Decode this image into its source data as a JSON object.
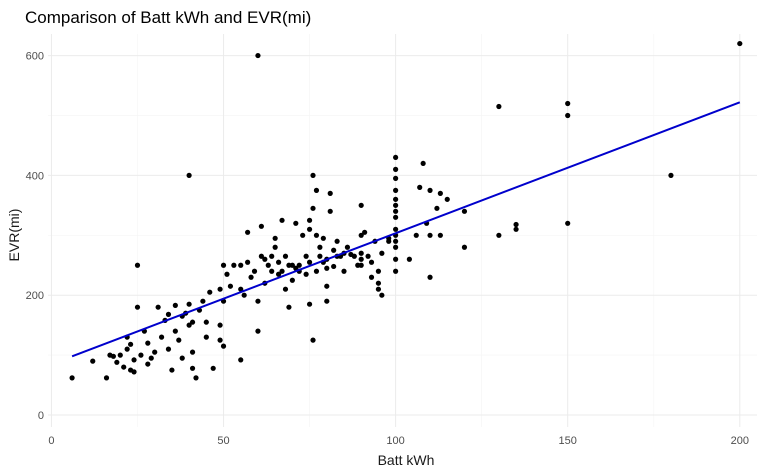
{
  "chart_data": {
    "type": "scatter",
    "title": "Comparison of Batt kWh and EVR(mi)",
    "xlabel": "Batt kWh",
    "ylabel": "EVR(mi)",
    "xlim": [
      -1,
      205
    ],
    "ylim": [
      -20,
      636
    ],
    "x_ticks": [
      0,
      50,
      100,
      150,
      200
    ],
    "y_ticks": [
      0,
      200,
      400,
      600
    ],
    "x_tick_labels": [
      "0",
      "50",
      "100",
      "150",
      "200"
    ],
    "y_tick_labels": [
      "0",
      "200",
      "400",
      "600"
    ],
    "grid": true,
    "colors": {
      "points": "#000000",
      "trend": "#0000CC",
      "grid": "#ebebeb"
    },
    "trend_line": {
      "x": [
        6,
        200
      ],
      "y": [
        98,
        522
      ]
    },
    "points": [
      [
        6,
        62
      ],
      [
        12,
        90
      ],
      [
        16,
        62
      ],
      [
        17,
        100
      ],
      [
        18,
        98
      ],
      [
        19,
        88
      ],
      [
        20,
        100
      ],
      [
        21,
        80
      ],
      [
        22,
        130
      ],
      [
        22,
        110
      ],
      [
        23,
        75
      ],
      [
        23,
        118
      ],
      [
        24,
        92
      ],
      [
        24,
        72
      ],
      [
        25,
        180
      ],
      [
        25,
        250
      ],
      [
        26,
        100
      ],
      [
        27,
        140
      ],
      [
        28,
        85
      ],
      [
        28,
        120
      ],
      [
        29,
        95
      ],
      [
        30,
        105
      ],
      [
        31,
        180
      ],
      [
        32,
        130
      ],
      [
        33,
        158
      ],
      [
        34,
        168
      ],
      [
        34,
        110
      ],
      [
        35,
        75
      ],
      [
        36,
        140
      ],
      [
        36,
        183
      ],
      [
        37,
        125
      ],
      [
        38,
        165
      ],
      [
        38,
        95
      ],
      [
        39,
        170
      ],
      [
        40,
        400
      ],
      [
        40,
        150
      ],
      [
        40,
        185
      ],
      [
        41,
        78
      ],
      [
        41,
        155
      ],
      [
        41,
        105
      ],
      [
        42,
        62
      ],
      [
        43,
        175
      ],
      [
        44,
        190
      ],
      [
        45,
        130
      ],
      [
        45,
        155
      ],
      [
        46,
        205
      ],
      [
        47,
        78
      ],
      [
        49,
        125
      ],
      [
        49,
        150
      ],
      [
        49,
        210
      ],
      [
        50,
        115
      ],
      [
        50,
        250
      ],
      [
        50,
        190
      ],
      [
        51,
        235
      ],
      [
        52,
        215
      ],
      [
        53,
        250
      ],
      [
        55,
        92
      ],
      [
        55,
        250
      ],
      [
        55,
        210
      ],
      [
        56,
        200
      ],
      [
        57,
        305
      ],
      [
        57,
        255
      ],
      [
        58,
        230
      ],
      [
        59,
        240
      ],
      [
        60,
        140
      ],
      [
        60,
        600
      ],
      [
        60,
        190
      ],
      [
        61,
        315
      ],
      [
        61,
        265
      ],
      [
        62,
        220
      ],
      [
        62,
        260
      ],
      [
        63,
        250
      ],
      [
        64,
        265
      ],
      [
        64,
        240
      ],
      [
        65,
        280
      ],
      [
        65,
        295
      ],
      [
        66,
        235
      ],
      [
        66,
        255
      ],
      [
        67,
        240
      ],
      [
        67,
        325
      ],
      [
        68,
        265
      ],
      [
        68,
        210
      ],
      [
        69,
        250
      ],
      [
        69,
        180
      ],
      [
        70,
        225
      ],
      [
        70,
        250
      ],
      [
        71,
        245
      ],
      [
        71,
        320
      ],
      [
        72,
        240
      ],
      [
        72,
        250
      ],
      [
        73,
        300
      ],
      [
        74,
        235
      ],
      [
        74,
        265
      ],
      [
        75,
        185
      ],
      [
        75,
        255
      ],
      [
        75,
        310
      ],
      [
        75,
        325
      ],
      [
        76,
        125
      ],
      [
        76,
        400
      ],
      [
        76,
        345
      ],
      [
        77,
        375
      ],
      [
        77,
        240
      ],
      [
        77,
        300
      ],
      [
        78,
        265
      ],
      [
        78,
        280
      ],
      [
        79,
        295
      ],
      [
        79,
        255
      ],
      [
        80,
        190
      ],
      [
        80,
        215
      ],
      [
        80,
        245
      ],
      [
        80,
        260
      ],
      [
        81,
        340
      ],
      [
        81,
        370
      ],
      [
        82,
        275
      ],
      [
        82,
        248
      ],
      [
        83,
        265
      ],
      [
        83,
        290
      ],
      [
        84,
        265
      ],
      [
        85,
        240
      ],
      [
        85,
        270
      ],
      [
        86,
        280
      ],
      [
        87,
        268
      ],
      [
        88,
        265
      ],
      [
        89,
        250
      ],
      [
        90,
        250
      ],
      [
        90,
        260
      ],
      [
        90,
        270
      ],
      [
        90,
        300
      ],
      [
        90,
        350
      ],
      [
        91,
        305
      ],
      [
        92,
        265
      ],
      [
        93,
        230
      ],
      [
        93,
        255
      ],
      [
        94,
        290
      ],
      [
        95,
        210
      ],
      [
        95,
        220
      ],
      [
        95,
        240
      ],
      [
        96,
        200
      ],
      [
        96,
        270
      ],
      [
        98,
        290
      ],
      [
        98,
        295
      ],
      [
        100,
        240
      ],
      [
        100,
        290
      ],
      [
        100,
        300
      ],
      [
        100,
        310
      ],
      [
        100,
        330
      ],
      [
        100,
        340
      ],
      [
        100,
        350
      ],
      [
        100,
        360
      ],
      [
        100,
        375
      ],
      [
        100,
        395
      ],
      [
        100,
        410
      ],
      [
        100,
        430
      ],
      [
        100,
        260
      ],
      [
        100,
        280
      ],
      [
        104,
        260
      ],
      [
        106,
        300
      ],
      [
        107,
        380
      ],
      [
        108,
        420
      ],
      [
        109,
        320
      ],
      [
        110,
        230
      ],
      [
        110,
        300
      ],
      [
        110,
        375
      ],
      [
        112,
        345
      ],
      [
        113,
        300
      ],
      [
        113,
        370
      ],
      [
        115,
        360
      ],
      [
        120,
        340
      ],
      [
        120,
        280
      ],
      [
        130,
        515
      ],
      [
        130,
        300
      ],
      [
        135,
        310
      ],
      [
        135,
        318
      ],
      [
        150,
        520
      ],
      [
        150,
        500
      ],
      [
        150,
        320
      ],
      [
        180,
        400
      ],
      [
        200,
        620
      ]
    ]
  }
}
